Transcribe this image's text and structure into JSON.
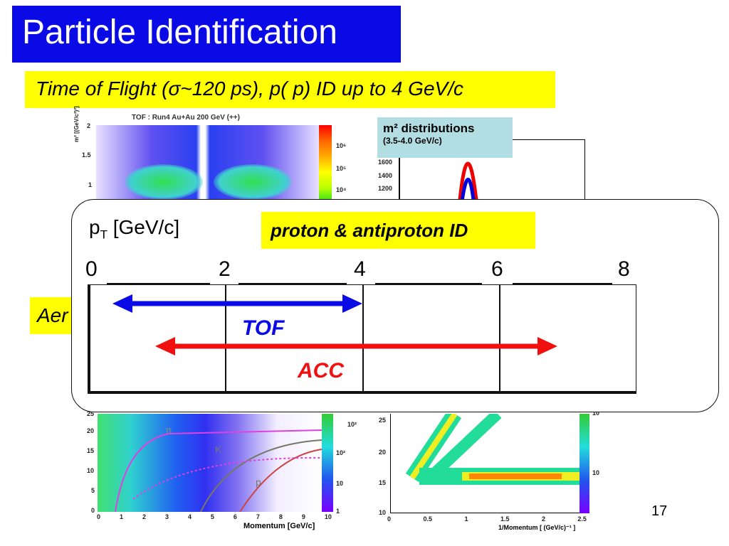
{
  "title": "Particle Identification",
  "subtitle": "Time of Flight (σ~120 ps), p( p) ID up to 4 GeV/c",
  "top_left_plot": {
    "title": "TOF : Run4 Au+Au 200 GeV (++)",
    "ylabel": "m² [(GeV/c²)²]",
    "yticks": [
      "2",
      "1.5",
      "1"
    ],
    "cbar_ticks": [
      "10⁶",
      "10⁵",
      "10⁴"
    ]
  },
  "m2_box": {
    "title": "m² distributions",
    "range": "(3.5-4.0 GeV/c)",
    "yticks": [
      "1600",
      "1400",
      "1200"
    ]
  },
  "aerogel_label": "Aer",
  "overlay": {
    "axis_label": "p",
    "axis_sub": "T",
    "axis_unit": " [GeV/c]",
    "highlight": "proton & antiproton ID",
    "scale": [
      "0",
      "2",
      "4",
      "6",
      "8"
    ],
    "tof_label": "TOF",
    "acc_label": "ACC",
    "tof_range": [
      0.3,
      4
    ],
    "acc_range": [
      0.9,
      7
    ]
  },
  "bottom_left_plot": {
    "xlabel": "Momentum [GeV/c]",
    "xticks": [
      "0",
      "1",
      "2",
      "3",
      "4",
      "5",
      "6",
      "7",
      "8",
      "9",
      "10"
    ],
    "yticks": [
      "25",
      "20",
      "15",
      "10",
      "5",
      "0"
    ],
    "species": [
      "π",
      "K",
      "p"
    ],
    "cbar_ticks": [
      "10²",
      "10²",
      "10",
      "1"
    ]
  },
  "bottom_right_plot": {
    "xlabel": "1/Momentum [ (GeV/c)⁻¹ ]",
    "xticks": [
      "0",
      "0.5",
      "1",
      "1.5",
      "2",
      "2.5"
    ],
    "yticks": [
      "25",
      "20",
      "15",
      "10"
    ],
    "cbar_ticks": [
      "10",
      "10"
    ]
  },
  "page_number": "17"
}
